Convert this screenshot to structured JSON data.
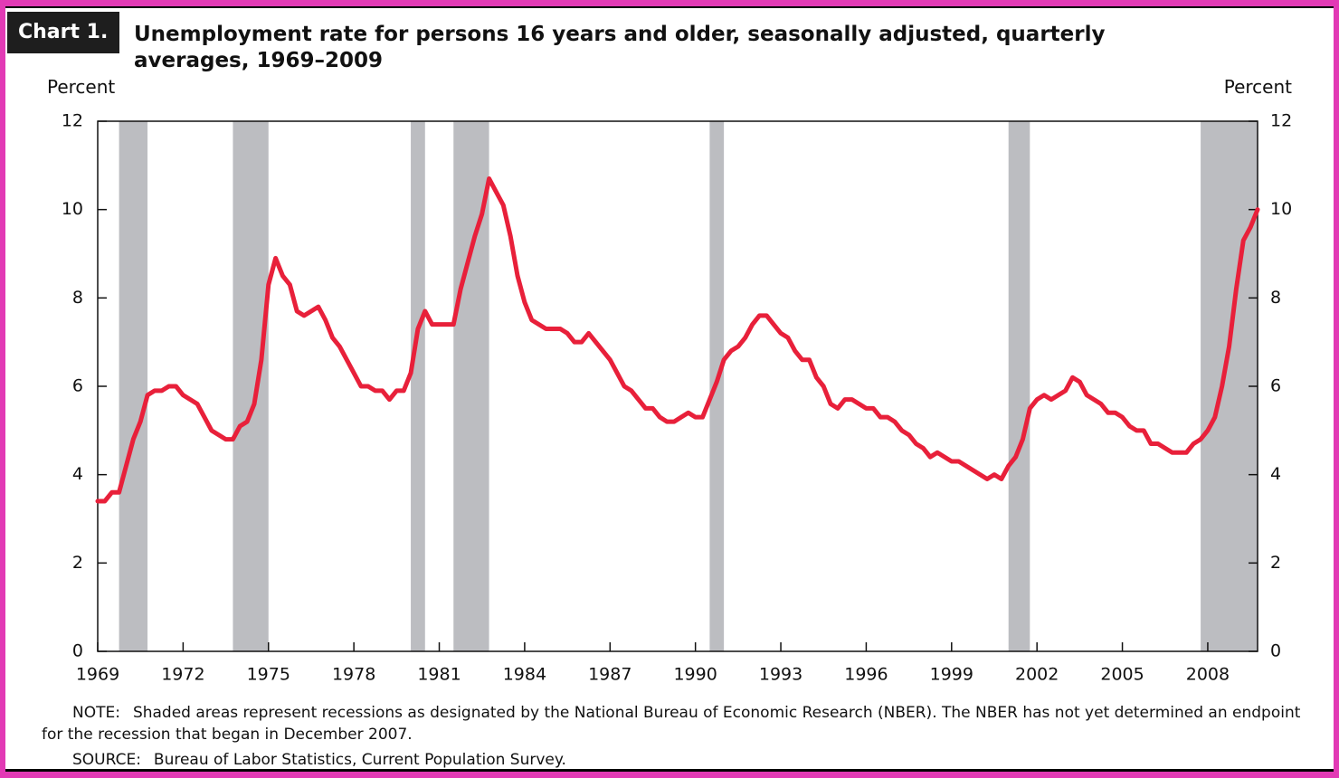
{
  "chart_data": {
    "type": "line",
    "label": "Chart 1.",
    "title": "Unemployment rate for persons 16 years and older, seasonally adjusted, quarterly averages, 1969–2009",
    "ylabel": "Percent",
    "y2label": "Percent",
    "color": "#e8203a",
    "shade_color": "#bcbdc1",
    "xlim": [
      1969,
      2009.75
    ],
    "xticks": [
      1969,
      1972,
      1975,
      1978,
      1981,
      1984,
      1987,
      1990,
      1993,
      1996,
      1999,
      2002,
      2005,
      2008
    ],
    "ylim": [
      0,
      12
    ],
    "yticks": [
      0,
      2,
      4,
      6,
      8,
      10,
      12
    ],
    "y2lim": [
      0,
      12
    ],
    "y2ticks": [
      0,
      2,
      4,
      6,
      8,
      10,
      12
    ],
    "recessions": [
      [
        1969.75,
        1970.75
      ],
      [
        1973.75,
        1975.0
      ],
      [
        1980.0,
        1980.5
      ],
      [
        1981.5,
        1982.75
      ],
      [
        1990.5,
        1991.0
      ],
      [
        2001.0,
        2001.75
      ],
      [
        2007.75,
        2009.75
      ]
    ],
    "x": [
      1969,
      1969.25,
      1969.5,
      1969.75,
      1970,
      1970.25,
      1970.5,
      1970.75,
      1971,
      1971.25,
      1971.5,
      1971.75,
      1972,
      1972.25,
      1972.5,
      1972.75,
      1973,
      1973.25,
      1973.5,
      1973.75,
      1974,
      1974.25,
      1974.5,
      1974.75,
      1975,
      1975.25,
      1975.5,
      1975.75,
      1976,
      1976.25,
      1976.5,
      1976.75,
      1977,
      1977.25,
      1977.5,
      1977.75,
      1978,
      1978.25,
      1978.5,
      1978.75,
      1979,
      1979.25,
      1979.5,
      1979.75,
      1980,
      1980.25,
      1980.5,
      1980.75,
      1981,
      1981.25,
      1981.5,
      1981.75,
      1982,
      1982.25,
      1982.5,
      1982.75,
      1983,
      1983.25,
      1983.5,
      1983.75,
      1984,
      1984.25,
      1984.5,
      1984.75,
      1985,
      1985.25,
      1985.5,
      1985.75,
      1986,
      1986.25,
      1986.5,
      1986.75,
      1987,
      1987.25,
      1987.5,
      1987.75,
      1988,
      1988.25,
      1988.5,
      1988.75,
      1989,
      1989.25,
      1989.5,
      1989.75,
      1990,
      1990.25,
      1990.5,
      1990.75,
      1991,
      1991.25,
      1991.5,
      1991.75,
      1992,
      1992.25,
      1992.5,
      1992.75,
      1993,
      1993.25,
      1993.5,
      1993.75,
      1994,
      1994.25,
      1994.5,
      1994.75,
      1995,
      1995.25,
      1995.5,
      1995.75,
      1996,
      1996.25,
      1996.5,
      1996.75,
      1997,
      1997.25,
      1997.5,
      1997.75,
      1998,
      1998.25,
      1998.5,
      1998.75,
      1999,
      1999.25,
      1999.5,
      1999.75,
      2000,
      2000.25,
      2000.5,
      2000.75,
      2001,
      2001.25,
      2001.5,
      2001.75,
      2002,
      2002.25,
      2002.5,
      2002.75,
      2003,
      2003.25,
      2003.5,
      2003.75,
      2004,
      2004.25,
      2004.5,
      2004.75,
      2005,
      2005.25,
      2005.5,
      2005.75,
      2006,
      2006.25,
      2006.5,
      2006.75,
      2007,
      2007.25,
      2007.5,
      2007.75,
      2008,
      2008.25,
      2008.5,
      2008.75,
      2009,
      2009.25,
      2009.5,
      2009.75
    ],
    "values": [
      3.4,
      3.4,
      3.6,
      3.6,
      4.2,
      4.8,
      5.2,
      5.8,
      5.9,
      5.9,
      6.0,
      6.0,
      5.8,
      5.7,
      5.6,
      5.3,
      5.0,
      4.9,
      4.8,
      4.8,
      5.1,
      5.2,
      5.6,
      6.6,
      8.3,
      8.9,
      8.5,
      8.3,
      7.7,
      7.6,
      7.7,
      7.8,
      7.5,
      7.1,
      6.9,
      6.6,
      6.3,
      6.0,
      6.0,
      5.9,
      5.9,
      5.7,
      5.9,
      5.9,
      6.3,
      7.3,
      7.7,
      7.4,
      7.4,
      7.4,
      7.4,
      8.2,
      8.8,
      9.4,
      9.9,
      10.7,
      10.4,
      10.1,
      9.4,
      8.5,
      7.9,
      7.5,
      7.4,
      7.3,
      7.3,
      7.3,
      7.2,
      7.0,
      7.0,
      7.2,
      7.0,
      6.8,
      6.6,
      6.3,
      6.0,
      5.9,
      5.7,
      5.5,
      5.5,
      5.3,
      5.2,
      5.2,
      5.3,
      5.4,
      5.3,
      5.3,
      5.7,
      6.1,
      6.6,
      6.8,
      6.9,
      7.1,
      7.4,
      7.6,
      7.6,
      7.4,
      7.2,
      7.1,
      6.8,
      6.6,
      6.6,
      6.2,
      6.0,
      5.6,
      5.5,
      5.7,
      5.7,
      5.6,
      5.5,
      5.5,
      5.3,
      5.3,
      5.2,
      5.0,
      4.9,
      4.7,
      4.6,
      4.4,
      4.5,
      4.4,
      4.3,
      4.3,
      4.2,
      4.1,
      4.0,
      3.9,
      4.0,
      3.9,
      4.2,
      4.4,
      4.8,
      5.5,
      5.7,
      5.8,
      5.7,
      5.8,
      5.9,
      6.2,
      6.1,
      5.8,
      5.7,
      5.6,
      5.4,
      5.4,
      5.3,
      5.1,
      5.0,
      5.0,
      4.7,
      4.7,
      4.6,
      4.5,
      4.5,
      4.5,
      4.7,
      4.8,
      5.0,
      5.3,
      6.0,
      6.9,
      8.2,
      9.3,
      9.6,
      10.0
    ],
    "notes": [
      {
        "label": "NOTE:",
        "text": "Shaded areas represent recessions as designated by the National Bureau of Economic Research (NBER). The NBER has not yet determined an endpoint for the recession that began in December 2007."
      },
      {
        "label": "SOURCE:",
        "text": "Bureau of Labor Statistics, Current Population Survey."
      }
    ]
  }
}
